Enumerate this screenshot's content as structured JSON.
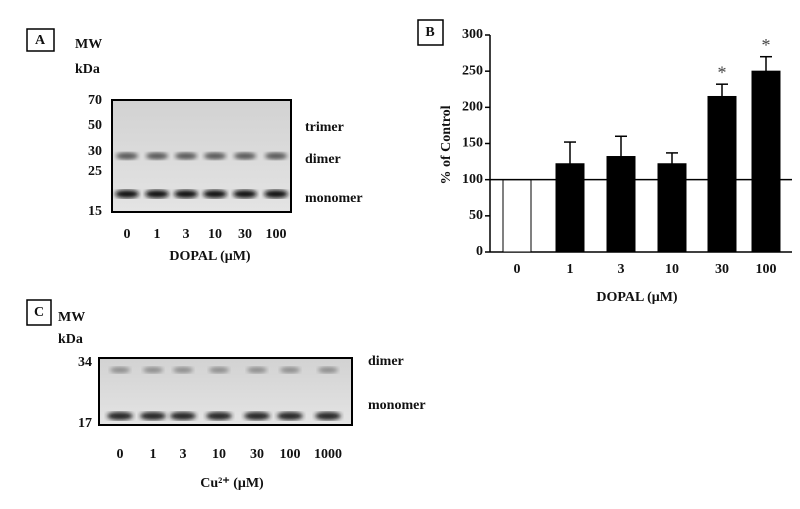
{
  "chart_data": {
    "type": "bar",
    "panel_label": "B",
    "ylabel": "% of Control",
    "xlabel": "DOPAL (μM)",
    "categories": [
      "0",
      "1",
      "3",
      "10",
      "30",
      "100"
    ],
    "values": [
      100,
      122,
      132,
      122,
      215,
      250
    ],
    "errors": [
      0,
      30,
      28,
      15,
      17,
      20
    ],
    "colors": [
      "#ffffff",
      "#000000",
      "#000000",
      "#000000",
      "#000000",
      "#000000"
    ],
    "annotations": [
      {
        "x": "30",
        "text": "*"
      },
      {
        "x": "100",
        "text": "*"
      }
    ],
    "reference_line": 100,
    "ylim": [
      0,
      300
    ],
    "yticks": [
      0,
      50,
      100,
      150,
      200,
      250,
      300
    ]
  },
  "panel_a": {
    "label": "A",
    "mw": "MW",
    "kda": "kDa",
    "markers": [
      "70",
      "50",
      "30",
      "25",
      "15"
    ],
    "bands": [
      "trimer",
      "dimer",
      "monomer"
    ],
    "lanes": [
      "0",
      "1",
      "3",
      "10",
      "30",
      "100"
    ],
    "xlabel": "DOPAL (μM)"
  },
  "panel_c": {
    "label": "C",
    "mw": "MW",
    "kda": "kDa",
    "markers": [
      "34",
      "17"
    ],
    "bands": [
      "dimer",
      "monomer"
    ],
    "lanes": [
      "0",
      "1",
      "3",
      "10",
      "30",
      "100",
      "1000"
    ],
    "xlabel": "Cu²⁺ (μM)"
  }
}
